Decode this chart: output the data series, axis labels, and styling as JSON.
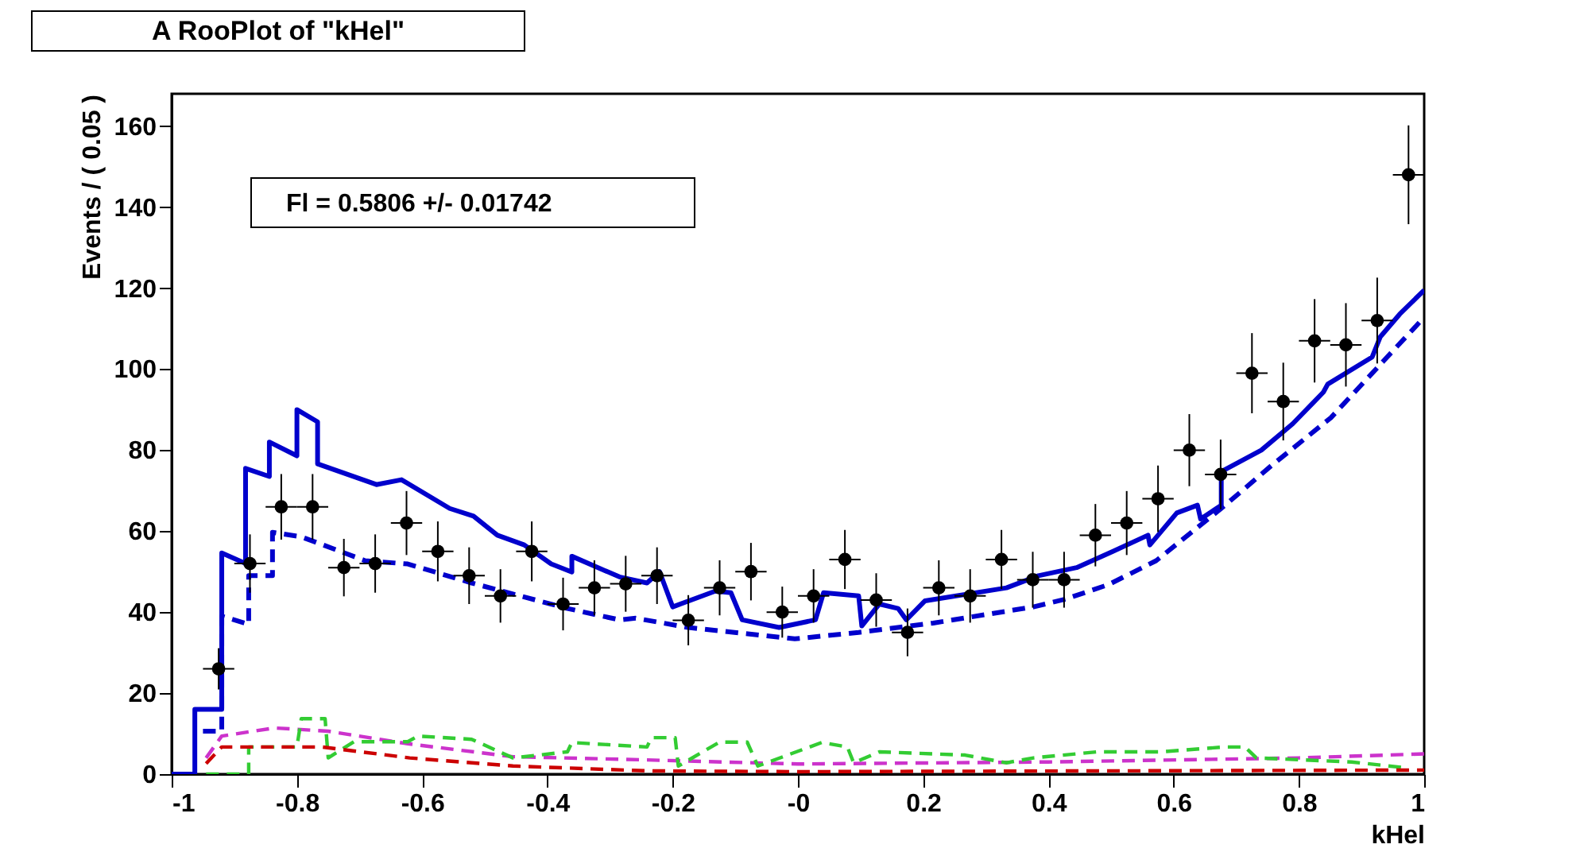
{
  "chart_data": {
    "type": "scatter",
    "title": "A RooPlot of \"kHel\"",
    "xlabel": "kHel",
    "ylabel": "Events / ( 0.05 )",
    "annotations": [
      "Fl =  0.5806 +/- 0.01742"
    ],
    "xlim": [
      -1,
      1
    ],
    "ylim": [
      0,
      168
    ],
    "xticks": [
      -1,
      -0.8,
      -0.6,
      -0.4,
      -0.2,
      {
        "value": 0,
        "label": "-0"
      },
      0.2,
      0.4,
      0.6,
      0.8,
      1
    ],
    "yticks": [
      0,
      20,
      40,
      60,
      80,
      100,
      120,
      140,
      160
    ],
    "grid": false,
    "series": [
      {
        "color": "#000000",
        "marker": "circle",
        "x": [
          -0.925,
          -0.875,
          -0.825,
          -0.775,
          -0.725,
          -0.675,
          -0.625,
          -0.575,
          -0.525,
          -0.475,
          -0.425,
          -0.375,
          -0.325,
          -0.275,
          -0.225,
          -0.175,
          -0.125,
          -0.075,
          -0.025,
          0.025,
          0.075,
          0.125,
          0.175,
          0.225,
          0.275,
          0.325,
          0.375,
          0.425,
          0.475,
          0.525,
          0.575,
          0.625,
          0.675,
          0.725,
          0.775,
          0.825,
          0.875,
          0.925,
          0.975
        ],
        "values": [
          26,
          52,
          66,
          66,
          51,
          52,
          62,
          55,
          49,
          44,
          55,
          42,
          46,
          47,
          49,
          38,
          46,
          50,
          40,
          44,
          53,
          43,
          35,
          46,
          44,
          53,
          48,
          48,
          59,
          62,
          68,
          80,
          74,
          99,
          92,
          107,
          106,
          112,
          148
        ],
        "errors": [
          5.1,
          7.2,
          8.1,
          8.1,
          7.1,
          7.2,
          7.9,
          7.4,
          7,
          6.6,
          7.4,
          6.5,
          6.8,
          6.9,
          7,
          6.2,
          6.8,
          7.1,
          6.3,
          6.6,
          7.3,
          6.6,
          5.9,
          6.8,
          6.6,
          7.3,
          6.9,
          6.9,
          7.7,
          7.9,
          8.2,
          8.9,
          8.6,
          9.9,
          9.6,
          10.3,
          10.3,
          10.6,
          12.2
        ],
        "xerrors": [
          0.025,
          0.025,
          0.025,
          0.025,
          0.025,
          0.025,
          0.025,
          0.025,
          0.025,
          0.025,
          0.025,
          0.025,
          0.025,
          0.025,
          0.025,
          0.025,
          0.025,
          0.025,
          0.025,
          0.025,
          0.025,
          0.025,
          0.025,
          0.025,
          0.025,
          0.025,
          0.025,
          0.025,
          0.025,
          0.025,
          0.025,
          0.025,
          0.025,
          0.025,
          0.025,
          0.025,
          0.025,
          0.025,
          0.025
        ]
      },
      {
        "type": "line",
        "color": "#0000cc",
        "line_style": "solid",
        "marker": "none",
        "x": [
          -1,
          -0.963,
          -0.963,
          -0.92,
          -0.92,
          -0.882,
          -0.882,
          -0.844,
          -0.844,
          -0.8,
          -0.8,
          -0.767,
          -0.767,
          -0.673,
          -0.633,
          -0.556,
          -0.518,
          -0.48,
          -0.437,
          -0.394,
          -0.361,
          -0.361,
          -0.285,
          -0.241,
          -0.221,
          -0.2,
          -0.132,
          -0.107,
          -0.089,
          -0.03,
          0.028,
          0.041,
          0.097,
          0.102,
          0.13,
          0.16,
          0.173,
          0.203,
          0.333,
          0.384,
          0.445,
          0.503,
          0.559,
          0.562,
          0.605,
          0.638,
          0.643,
          0.676,
          0.676,
          0.74,
          0.79,
          0.839,
          0.846,
          0.917,
          0.93,
          0.961,
          1
        ],
        "values": [
          0,
          0,
          16,
          16,
          54.6,
          52,
          75.5,
          73.5,
          82,
          78.6,
          90,
          87,
          76.6,
          71.5,
          72.7,
          65.6,
          63.7,
          59,
          56.6,
          51.9,
          49.9,
          53.8,
          48.7,
          47.2,
          50,
          41.3,
          45.2,
          44.8,
          38.1,
          36.2,
          38.1,
          44.8,
          44,
          36.6,
          42,
          40.9,
          38.1,
          42.8,
          46,
          49,
          51,
          55,
          59,
          56.6,
          64.5,
          66.4,
          63,
          66.4,
          74.7,
          80,
          86.5,
          94.3,
          96.3,
          103,
          108,
          113.6,
          119.5
        ]
      },
      {
        "type": "line",
        "color": "#0000cc",
        "line_style": "dashed",
        "marker": "none",
        "x": [
          -0.95,
          -0.92,
          -0.92,
          -0.877,
          -0.877,
          -0.839,
          -0.839,
          -0.793,
          -0.691,
          -0.623,
          -0.521,
          -0.368,
          -0.285,
          -0.259,
          -0.175,
          -0.005,
          0.097,
          0.216,
          0.376,
          0.427,
          0.496,
          0.572,
          0.676,
          0.757,
          0.851,
          0.935,
          1
        ],
        "values": [
          10.6,
          10.6,
          39,
          37,
          49,
          49,
          59.7,
          58.6,
          52.7,
          51.9,
          47.2,
          40.9,
          38.1,
          38.5,
          36.2,
          33.4,
          35,
          37.3,
          41.3,
          43.2,
          46.8,
          52.7,
          65.6,
          76.3,
          88,
          102,
          112.8
        ]
      },
      {
        "type": "line",
        "color": "#cc33cc",
        "line_style": "dashed",
        "marker": "none",
        "x": [
          -0.945,
          -0.92,
          -0.836,
          -0.75,
          -0.623,
          -0.455,
          -0.241,
          0,
          0.4,
          0.8,
          1
        ],
        "values": [
          4,
          9.4,
          11.4,
          10.6,
          7.5,
          4.3,
          3.5,
          2.5,
          3,
          4,
          5
        ]
      },
      {
        "type": "line",
        "color": "#33cc33",
        "line_style": "dashed",
        "marker": "none",
        "x": [
          -0.945,
          -0.877,
          -0.877,
          -0.8,
          -0.793,
          -0.755,
          -0.75,
          -0.709,
          -0.623,
          -0.607,
          -0.521,
          -0.455,
          -0.368,
          -0.361,
          -0.241,
          -0.234,
          -0.196,
          -0.191,
          -0.125,
          -0.081,
          -0.064,
          0.038,
          0.079,
          0.089,
          0.13,
          0.267,
          0.333,
          0.376,
          0.478,
          0.579,
          0.681,
          0.714,
          0.732,
          0.884,
          0.968
        ],
        "values": [
          0,
          0,
          6.7,
          6.7,
          13.7,
          13.7,
          4,
          8,
          8,
          9.4,
          8.6,
          4,
          5.5,
          7.8,
          6.7,
          9,
          9,
          2,
          7.9,
          7.9,
          2,
          7.8,
          6.7,
          2.8,
          5.5,
          4.7,
          2.8,
          4,
          5.5,
          5.5,
          6.7,
          6.7,
          4,
          3,
          1.6
        ]
      },
      {
        "type": "line",
        "color": "#cc0000",
        "line_style": "dashed",
        "marker": "none",
        "x": [
          -0.945,
          -0.92,
          -0.76,
          -0.62,
          -0.455,
          -0.241,
          0,
          0.5,
          1
        ],
        "values": [
          2.6,
          6.7,
          6.7,
          4,
          2,
          0.8,
          0.6,
          0.8,
          1
        ]
      }
    ]
  }
}
